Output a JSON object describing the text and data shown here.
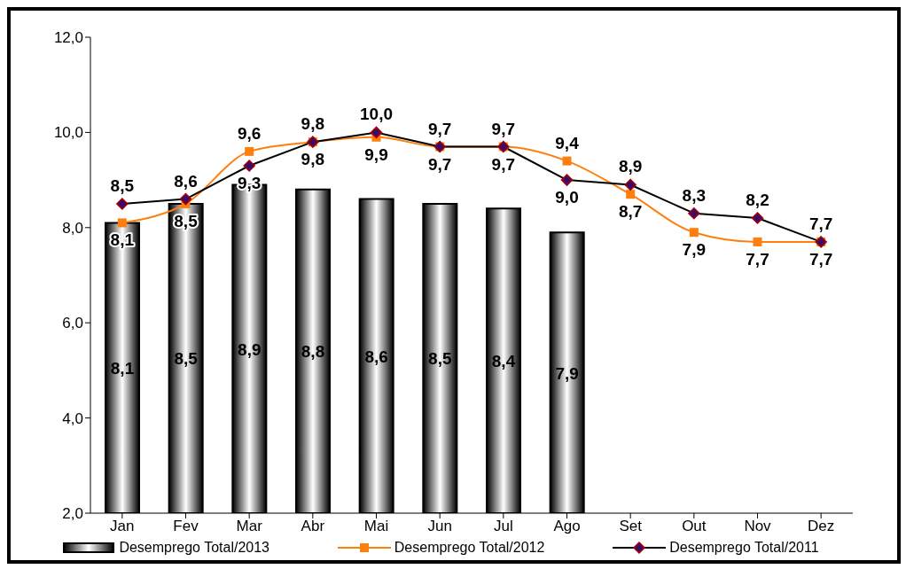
{
  "chart_data": {
    "type": "bar",
    "categories": [
      "Jan",
      "Fev",
      "Mar",
      "Abr",
      "Mai",
      "Jun",
      "Jul",
      "Ago",
      "Set",
      "Out",
      "Nov",
      "Dez"
    ],
    "ylim": [
      2,
      12
    ],
    "yticks": [
      {
        "value": 2,
        "label": "2,0"
      },
      {
        "value": 4,
        "label": "4,0"
      },
      {
        "value": 6,
        "label": "6,0"
      },
      {
        "value": 8,
        "label": "8,0"
      },
      {
        "value": 10,
        "label": "10,0"
      },
      {
        "value": 12,
        "label": "12,0"
      }
    ],
    "grid": false,
    "legend": "bottom",
    "series": [
      {
        "name": "Desemprego Total/2013",
        "color": "#000000",
        "values": [
          8.1,
          8.5,
          8.9,
          8.8,
          8.6,
          8.5,
          8.4,
          7.9,
          null,
          null,
          null,
          null
        ],
        "value_labels": [
          "8,1",
          "8,5",
          "8,9",
          "8,8",
          "8,6",
          "8,5",
          "8,4",
          "7,9",
          null,
          null,
          null,
          null
        ]
      },
      {
        "name": "Desemprego Total/2012",
        "type": "line",
        "color": "#ff7f0e",
        "marker": "square",
        "values": [
          8.1,
          8.5,
          9.6,
          9.8,
          9.9,
          9.7,
          9.7,
          9.4,
          8.7,
          7.9,
          7.7,
          7.7
        ],
        "value_labels": [
          "8,1",
          "8,5",
          "9,6",
          "9,8",
          "9,9",
          "9,7",
          "9,7",
          "9,4",
          "8,7",
          "7,9",
          "7,7",
          "7,7"
        ]
      },
      {
        "name": "Desemprego Total/2011",
        "type": "line",
        "color": "#000000",
        "marker": "diamond",
        "values": [
          8.5,
          8.6,
          9.3,
          9.8,
          10.0,
          9.7,
          9.7,
          9.0,
          8.9,
          8.3,
          8.2,
          7.7
        ],
        "value_labels": [
          "8,5",
          "8,6",
          "9,3",
          "9,8",
          "10,0",
          "9,7",
          "9,7",
          "9,0",
          "8,9",
          "8,3",
          "8,2",
          "7,7"
        ]
      }
    ]
  }
}
